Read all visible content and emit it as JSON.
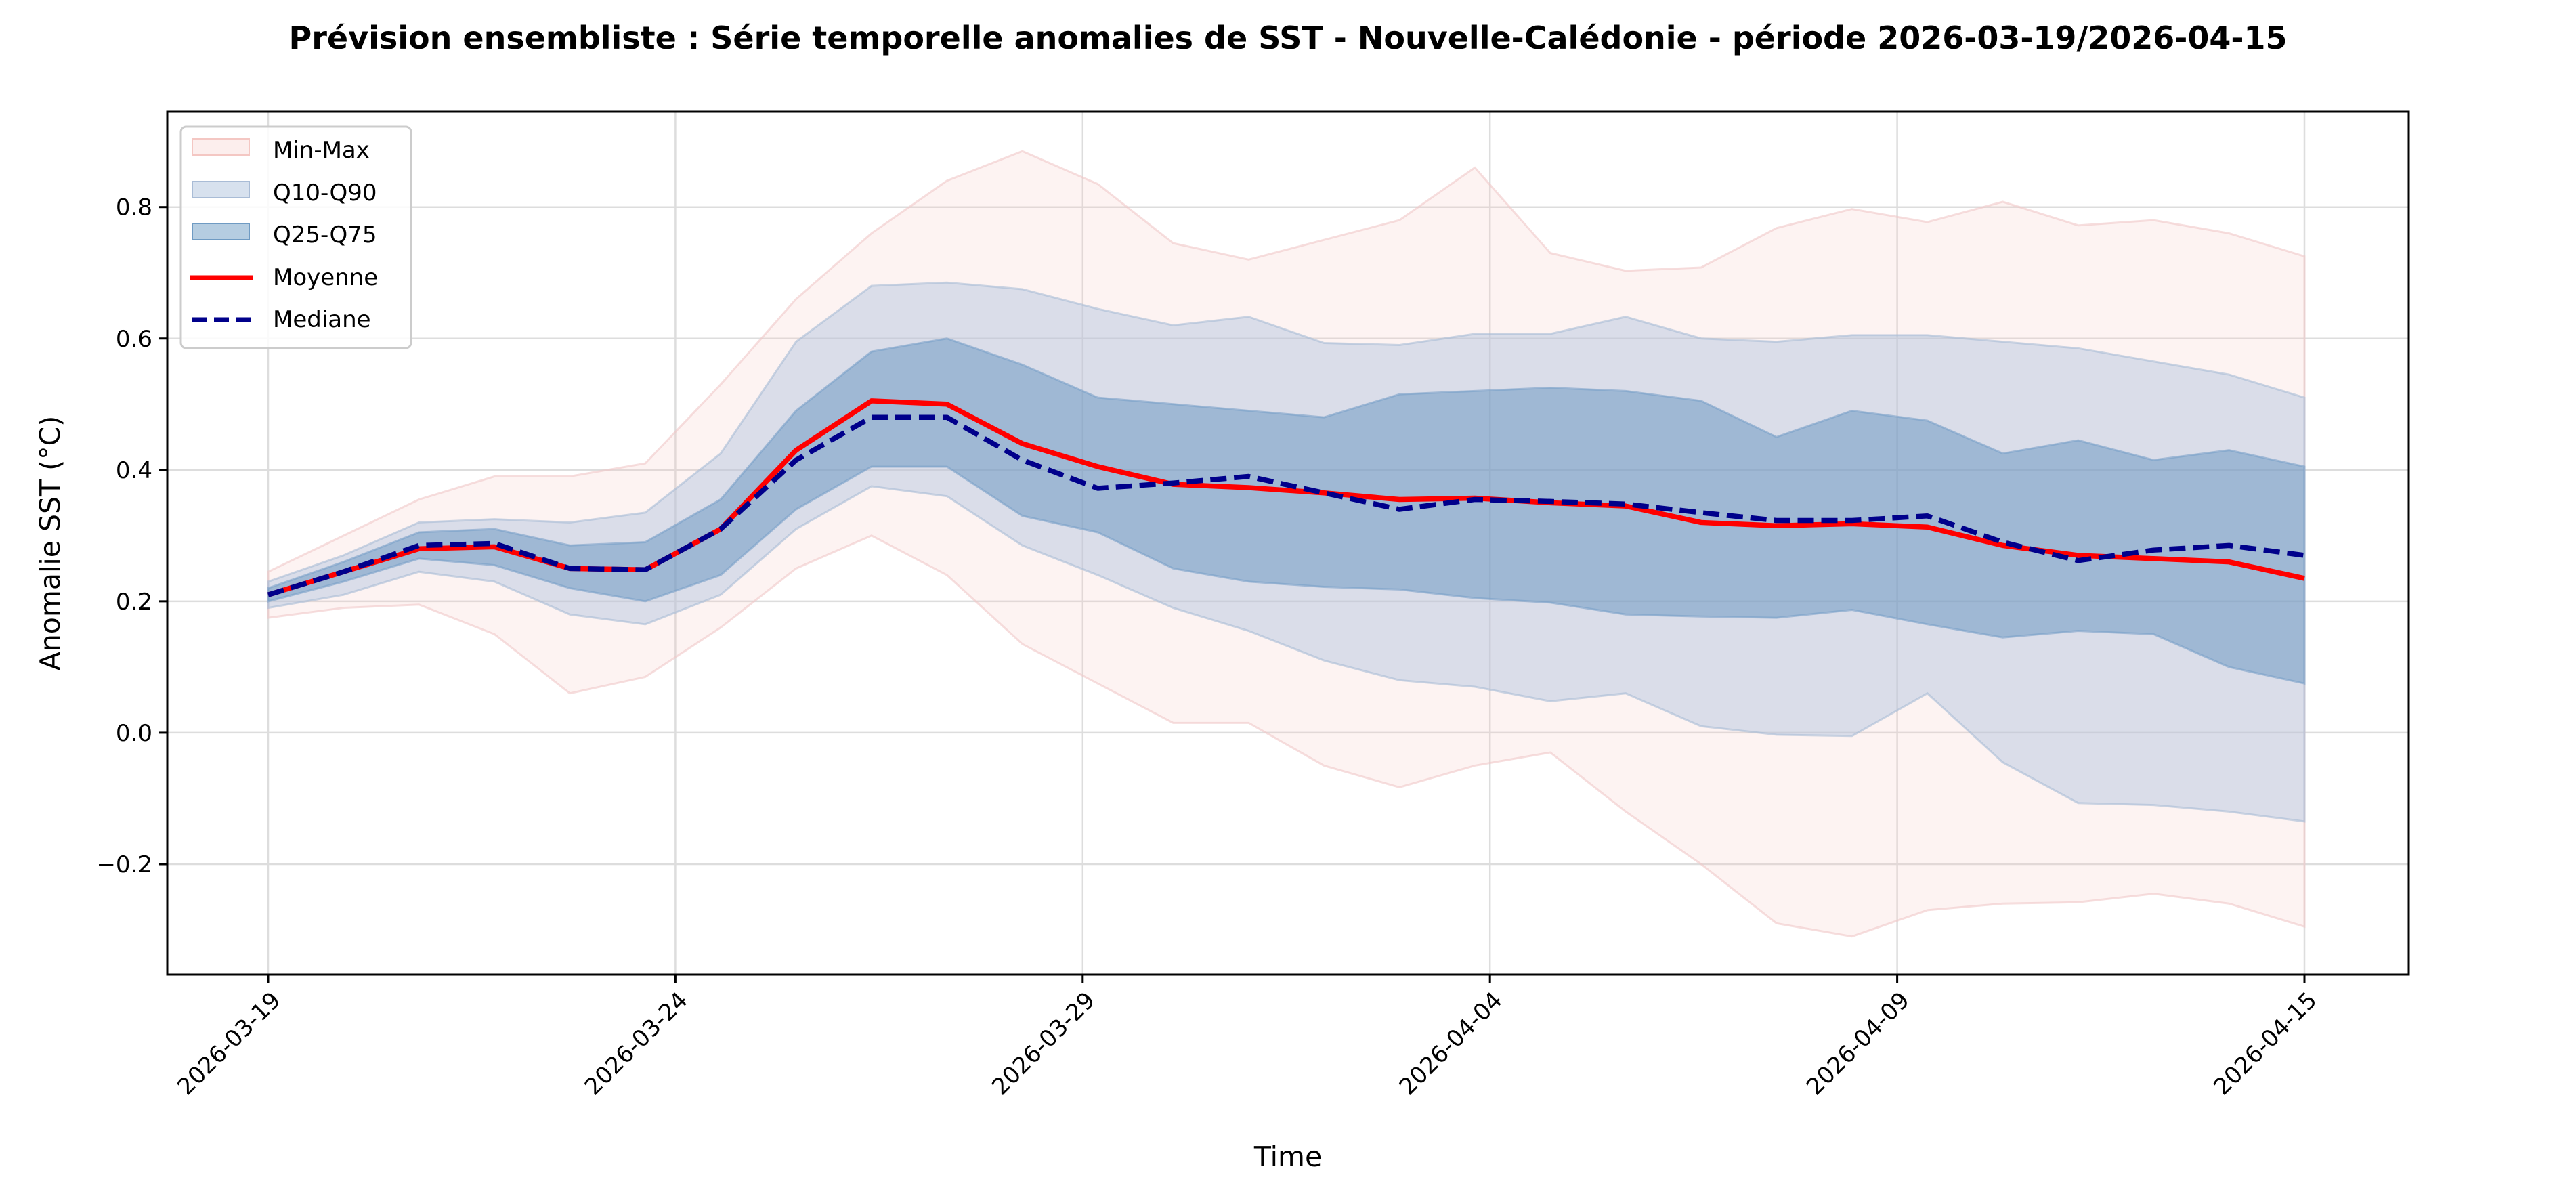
{
  "chart_data": {
    "type": "area",
    "title": "Prévision ensembliste : Série temporelle anomalies de SST - Nouvelle-Calédonie - période 2026-03-19/2026-04-15",
    "xlabel": "Time",
    "ylabel": "Anomalie SST (°C)",
    "ylim": [
      -0.368,
      0.945
    ],
    "xlim_days": [
      -1.3,
      28.3
    ],
    "grid": true,
    "legend_position": "top-left",
    "yticks": [
      -0.2,
      0.0,
      0.2,
      0.4,
      0.6,
      0.8
    ],
    "ytick_labels": [
      "−0.2",
      "0.0",
      "0.2",
      "0.4",
      "0.6",
      "0.8"
    ],
    "xticks_days": [
      0,
      5.4,
      10.8,
      16.2,
      21.6,
      27
    ],
    "xtick_labels": [
      "2026-03-19",
      "2026-03-24",
      "2026-03-29",
      "2026-04-04",
      "2026-04-09",
      "2026-04-15"
    ],
    "x_days": [
      0,
      1,
      2,
      3,
      4,
      5,
      6,
      7,
      8,
      9,
      10,
      11,
      12,
      13,
      14,
      15,
      16,
      17,
      18,
      19,
      20,
      21,
      22,
      23,
      24,
      25,
      26,
      27
    ],
    "legend": [
      "Min-Max",
      "Q10-Q90",
      "Q25-Q75",
      "Moyenne",
      "Mediane"
    ],
    "bands": {
      "min": [
        0.175,
        0.19,
        0.195,
        0.15,
        0.06,
        0.085,
        0.16,
        0.25,
        0.3,
        0.24,
        0.135,
        0.075,
        0.015,
        0.015,
        -0.05,
        -0.083,
        -0.05,
        -0.03,
        -0.12,
        -0.2,
        -0.29,
        -0.31,
        -0.27,
        -0.26,
        -0.258,
        -0.245,
        -0.26,
        -0.295
      ],
      "max": [
        0.245,
        0.3,
        0.355,
        0.39,
        0.39,
        0.41,
        0.53,
        0.66,
        0.76,
        0.84,
        0.885,
        0.835,
        0.745,
        0.72,
        0.75,
        0.78,
        0.86,
        0.73,
        0.703,
        0.708,
        0.768,
        0.797,
        0.777,
        0.808,
        0.772,
        0.78,
        0.76,
        0.725
      ],
      "q10": [
        0.19,
        0.21,
        0.245,
        0.23,
        0.18,
        0.165,
        0.21,
        0.31,
        0.375,
        0.36,
        0.285,
        0.24,
        0.19,
        0.155,
        0.11,
        0.08,
        0.07,
        0.048,
        0.06,
        0.01,
        -0.003,
        -0.005,
        0.06,
        -0.045,
        -0.107,
        -0.11,
        -0.12,
        -0.135
      ],
      "q90": [
        0.23,
        0.27,
        0.32,
        0.325,
        0.32,
        0.335,
        0.425,
        0.595,
        0.68,
        0.685,
        0.675,
        0.645,
        0.62,
        0.633,
        0.593,
        0.59,
        0.607,
        0.607,
        0.633,
        0.6,
        0.595,
        0.605,
        0.605,
        0.595,
        0.585,
        0.565,
        0.545,
        0.51
      ],
      "q25": [
        0.2,
        0.23,
        0.265,
        0.255,
        0.22,
        0.2,
        0.24,
        0.34,
        0.405,
        0.405,
        0.33,
        0.305,
        0.25,
        0.23,
        0.222,
        0.218,
        0.205,
        0.198,
        0.18,
        0.177,
        0.175,
        0.187,
        0.165,
        0.145,
        0.155,
        0.15,
        0.1,
        0.075
      ],
      "q75": [
        0.22,
        0.26,
        0.305,
        0.31,
        0.285,
        0.29,
        0.355,
        0.49,
        0.58,
        0.6,
        0.56,
        0.51,
        0.5,
        0.49,
        0.48,
        0.515,
        0.52,
        0.525,
        0.52,
        0.505,
        0.45,
        0.49,
        0.475,
        0.425,
        0.445,
        0.415,
        0.43,
        0.405
      ]
    },
    "series": [
      {
        "name": "Moyenne",
        "values": [
          0.21,
          0.245,
          0.28,
          0.283,
          0.25,
          0.248,
          0.31,
          0.43,
          0.505,
          0.5,
          0.44,
          0.405,
          0.378,
          0.373,
          0.365,
          0.355,
          0.357,
          0.35,
          0.345,
          0.32,
          0.315,
          0.318,
          0.313,
          0.285,
          0.27,
          0.265,
          0.26,
          0.235
        ]
      },
      {
        "name": "Mediane",
        "values": [
          0.21,
          0.245,
          0.285,
          0.288,
          0.25,
          0.248,
          0.31,
          0.415,
          0.48,
          0.48,
          0.415,
          0.372,
          0.38,
          0.39,
          0.365,
          0.34,
          0.355,
          0.352,
          0.348,
          0.335,
          0.323,
          0.323,
          0.33,
          0.29,
          0.262,
          0.278,
          0.285,
          0.27
        ]
      }
    ],
    "colors": {
      "minmax": "#f4c7c3",
      "q10q90": "#b0c4de",
      "q25q75": "#4682b4",
      "mean": "#ff0000",
      "median": "#00008b"
    }
  }
}
